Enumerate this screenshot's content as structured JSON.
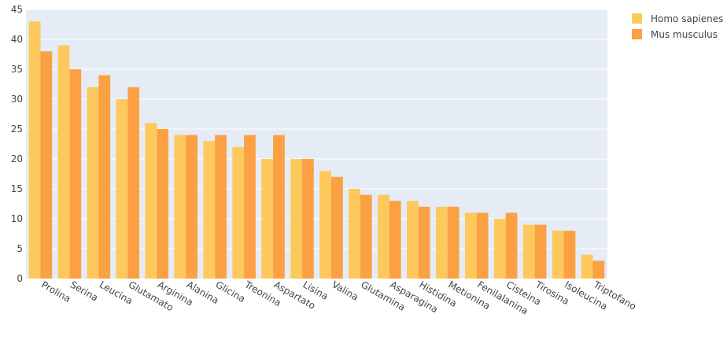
{
  "chart_data": {
    "type": "bar",
    "title": "",
    "xlabel": "",
    "ylabel": "",
    "ylim": [
      0,
      45
    ],
    "yticks": [
      "0",
      "5",
      "10",
      "15",
      "20",
      "25",
      "30",
      "35",
      "40",
      "45"
    ],
    "grid": true,
    "legend_position": "top-right",
    "categories": [
      "Prolina",
      "Serina",
      "Leucina",
      "Glutamato",
      "Arginina",
      "Alanina",
      "Glicina",
      "Treonina",
      "Aspartato",
      "Lisina",
      "Valina",
      "Glutamina",
      "Asparagina",
      "Histidina",
      "Metionina",
      "Fenilalanina",
      "Cisteina",
      "Tirosina",
      "Isoleucina",
      "Triptofano"
    ],
    "series": [
      {
        "name": "Homo sapienes",
        "color": "#fdc95c",
        "values": [
          43,
          39,
          32,
          30,
          26,
          24,
          23,
          22,
          20,
          20,
          18,
          15,
          14,
          13,
          12,
          11,
          10,
          9,
          8,
          4
        ]
      },
      {
        "name": "Mus musculus",
        "color": "#fca044",
        "values": [
          38,
          35,
          34,
          32,
          25,
          24,
          24,
          24,
          24,
          20,
          17,
          14,
          13,
          12,
          12,
          11,
          11,
          9,
          8,
          3
        ]
      }
    ]
  },
  "colors": {
    "plot_bg": "#e5ecf6",
    "grid": "#ffffff"
  }
}
